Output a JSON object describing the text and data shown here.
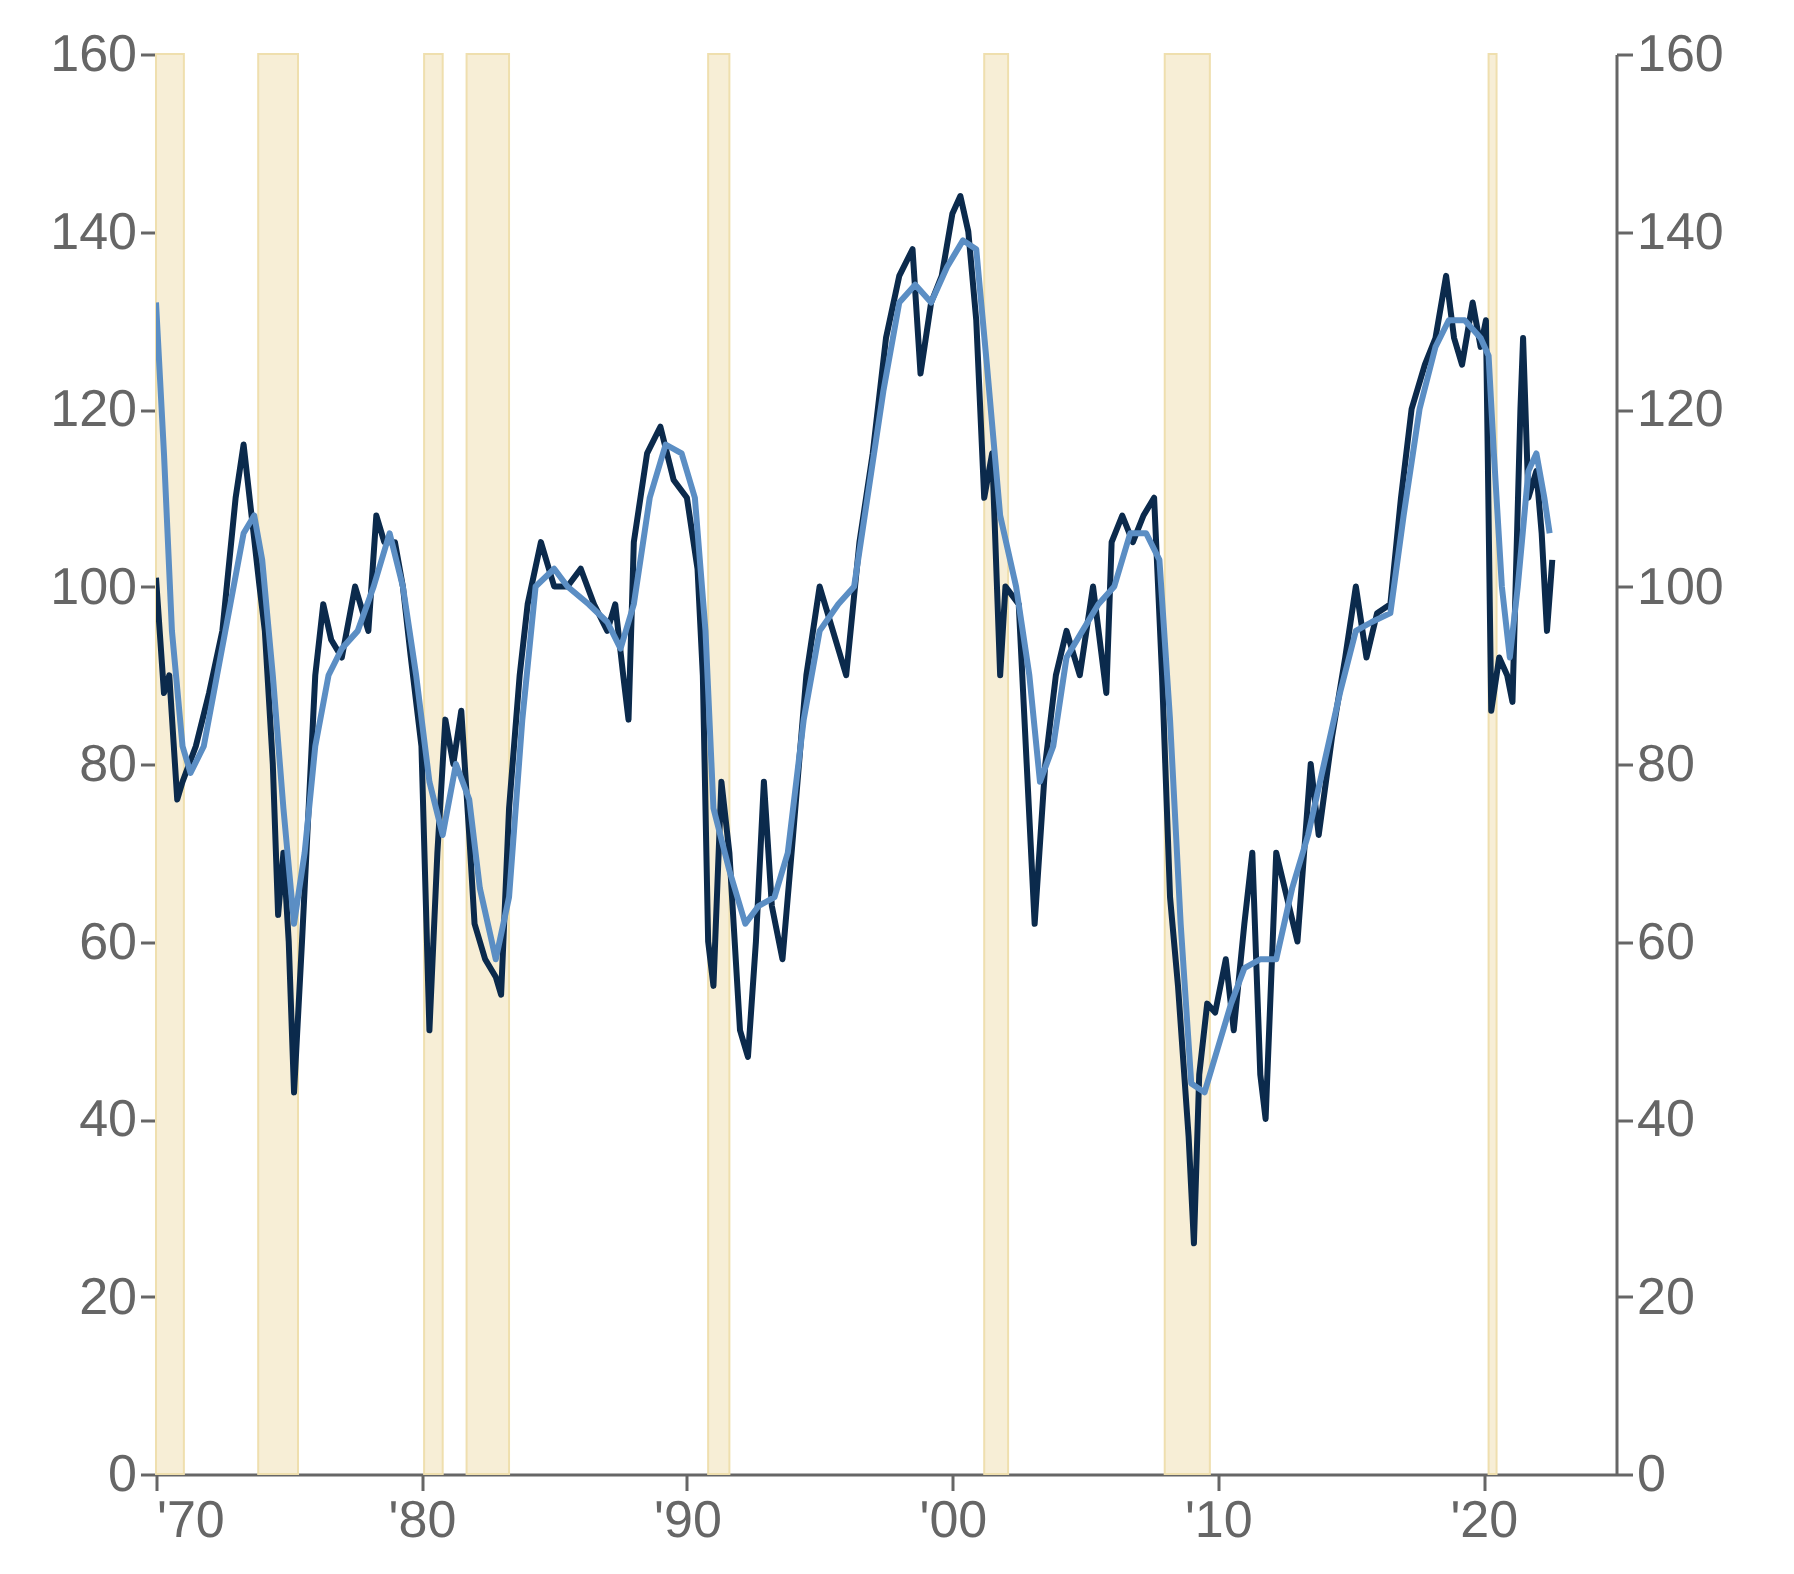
{
  "chart_data": {
    "type": "line",
    "xlim": [
      1970,
      2025
    ],
    "xticks": [
      {
        "value": 1970,
        "label": "'70"
      },
      {
        "value": 1980,
        "label": "'80"
      },
      {
        "value": 1990,
        "label": "'90"
      },
      {
        "value": 2000,
        "label": "'00"
      },
      {
        "value": 2010,
        "label": "'10"
      },
      {
        "value": 2020,
        "label": "'20"
      }
    ],
    "ylim": [
      0,
      160
    ],
    "yticks": [
      0,
      20,
      40,
      60,
      80,
      100,
      120,
      140,
      160
    ],
    "y2lim": [
      0,
      160
    ],
    "y2ticks": [
      0,
      20,
      40,
      60,
      80,
      100,
      120,
      140,
      160
    ],
    "grid": false,
    "marker": "none",
    "line_style": "solid",
    "bands": [
      {
        "axis": "x",
        "from": 1970,
        "to": 1971.05,
        "color": "#f7eed6"
      },
      {
        "axis": "x",
        "from": 1973.85,
        "to": 1975.35,
        "color": "#f7eed6"
      },
      {
        "axis": "x",
        "from": 1980.1,
        "to": 1980.8,
        "color": "#f7eed6"
      },
      {
        "axis": "x",
        "from": 1981.7,
        "to": 1983.3,
        "color": "#f7eed6"
      },
      {
        "axis": "x",
        "from": 1990.8,
        "to": 1991.6,
        "color": "#f7eed6"
      },
      {
        "axis": "x",
        "from": 2001.2,
        "to": 2002.1,
        "color": "#f7eed6"
      },
      {
        "axis": "x",
        "from": 2008.0,
        "to": 2009.7,
        "color": "#f7eed6"
      },
      {
        "axis": "x",
        "from": 2020.2,
        "to": 2020.5,
        "color": "#f7eed6"
      }
    ],
    "series": [
      {
        "color": "#0b2a4c",
        "x": [
          1970.0,
          1970.3,
          1970.5,
          1970.8,
          1971.0,
          1971.5,
          1972.0,
          1972.5,
          1973.0,
          1973.3,
          1973.6,
          1973.9,
          1974.1,
          1974.4,
          1974.6,
          1974.8,
          1975.0,
          1975.2,
          1975.5,
          1975.8,
          1976.0,
          1976.3,
          1976.6,
          1977.0,
          1977.5,
          1978.0,
          1978.3,
          1978.6,
          1979.0,
          1979.3,
          1979.6,
          1980.0,
          1980.3,
          1980.6,
          1980.9,
          1981.2,
          1981.5,
          1981.8,
          1982.0,
          1982.4,
          1982.8,
          1983.0,
          1983.3,
          1983.7,
          1984.0,
          1984.5,
          1985.0,
          1985.5,
          1986.0,
          1986.5,
          1987.0,
          1987.3,
          1987.6,
          1987.8,
          1988.0,
          1988.5,
          1989.0,
          1989.5,
          1990.0,
          1990.4,
          1990.6,
          1990.8,
          1991.0,
          1991.3,
          1991.6,
          1992.0,
          1992.3,
          1992.6,
          1992.9,
          1993.2,
          1993.6,
          1994.0,
          1994.5,
          1995.0,
          1995.5,
          1996.0,
          1996.5,
          1997.0,
          1997.5,
          1998.0,
          1998.5,
          1998.8,
          1999.2,
          1999.6,
          2000.0,
          2000.3,
          2000.6,
          2000.9,
          2001.2,
          2001.5,
          2001.8,
          2002.0,
          2002.5,
          2002.8,
          2003.1,
          2003.5,
          2003.9,
          2004.3,
          2004.8,
          2005.3,
          2005.8,
          2006.0,
          2006.4,
          2006.8,
          2007.2,
          2007.6,
          2007.9,
          2008.2,
          2008.5,
          2008.9,
          2009.1,
          2009.3,
          2009.6,
          2009.9,
          2010.3,
          2010.6,
          2011.0,
          2011.3,
          2011.6,
          2011.8,
          2012.2,
          2012.6,
          2013.0,
          2013.5,
          2013.8,
          2014.3,
          2014.8,
          2015.2,
          2015.6,
          2016.0,
          2016.5,
          2016.9,
          2017.3,
          2017.8,
          2018.2,
          2018.6,
          2018.9,
          2019.2,
          2019.6,
          2019.9,
          2020.1,
          2020.3,
          2020.6,
          2020.9,
          2021.1,
          2021.4,
          2021.5,
          2021.7,
          2022.0,
          2022.2,
          2022.4,
          2022.6
        ],
        "values": [
          101,
          88,
          90,
          76,
          78,
          82,
          88,
          95,
          110,
          116,
          108,
          100,
          95,
          80,
          63,
          70,
          60,
          43,
          60,
          78,
          90,
          98,
          94,
          92,
          100,
          95,
          108,
          105,
          105,
          100,
          92,
          82,
          50,
          70,
          85,
          80,
          86,
          72,
          62,
          58,
          56,
          54,
          75,
          90,
          98,
          105,
          100,
          100,
          102,
          98,
          95,
          98,
          90,
          85,
          105,
          115,
          118,
          112,
          110,
          102,
          90,
          60,
          55,
          78,
          70,
          50,
          47,
          60,
          78,
          64,
          58,
          72,
          90,
          100,
          95,
          90,
          105,
          115,
          128,
          135,
          138,
          124,
          132,
          135,
          142,
          144,
          140,
          130,
          110,
          115,
          90,
          100,
          98,
          80,
          62,
          80,
          90,
          95,
          90,
          100,
          88,
          105,
          108,
          105,
          108,
          110,
          90,
          65,
          55,
          38,
          26,
          45,
          53,
          52,
          58,
          50,
          62,
          70,
          45,
          40,
          70,
          65,
          60,
          80,
          72,
          83,
          92,
          100,
          92,
          97,
          98,
          110,
          120,
          125,
          128,
          135,
          128,
          125,
          132,
          127,
          130,
          86,
          92,
          90,
          87,
          120,
          128,
          110,
          113,
          106,
          95,
          103
        ]
      },
      {
        "color": "#5b8ec4",
        "x": [
          1970.0,
          1970.3,
          1970.6,
          1971.0,
          1971.3,
          1971.8,
          1972.3,
          1972.8,
          1973.3,
          1973.7,
          1974.0,
          1974.4,
          1974.8,
          1975.2,
          1975.6,
          1976.0,
          1976.5,
          1977.0,
          1977.6,
          1978.2,
          1978.8,
          1979.3,
          1979.8,
          1980.3,
          1980.8,
          1981.3,
          1981.8,
          1982.2,
          1982.8,
          1983.3,
          1983.8,
          1984.3,
          1985.0,
          1985.5,
          1986.3,
          1987.0,
          1987.5,
          1988.0,
          1988.6,
          1989.2,
          1989.8,
          1990.3,
          1990.7,
          1991.0,
          1991.6,
          1992.2,
          1992.7,
          1993.3,
          1993.8,
          1994.4,
          1995.0,
          1995.7,
          1996.3,
          1996.8,
          1997.4,
          1998.0,
          1998.6,
          1999.2,
          1999.8,
          2000.4,
          2000.9,
          2001.3,
          2001.8,
          2002.4,
          2002.9,
          2003.3,
          2003.8,
          2004.3,
          2004.9,
          2005.5,
          2006.1,
          2006.7,
          2007.3,
          2007.8,
          2008.2,
          2008.6,
          2009.0,
          2009.5,
          2010.0,
          2010.5,
          2011.0,
          2011.6,
          2012.2,
          2012.8,
          2013.4,
          2014.0,
          2014.6,
          2015.2,
          2015.8,
          2016.5,
          2017.0,
          2017.6,
          2018.2,
          2018.7,
          2019.3,
          2019.9,
          2020.2,
          2020.4,
          2020.7,
          2021.0,
          2021.3,
          2021.7,
          2022.0,
          2022.3,
          2022.5
        ],
        "values": [
          132,
          115,
          95,
          82,
          79,
          82,
          90,
          98,
          106,
          108,
          103,
          90,
          75,
          62,
          70,
          82,
          90,
          93,
          95,
          100,
          106,
          100,
          90,
          78,
          72,
          80,
          76,
          66,
          58,
          65,
          85,
          100,
          102,
          100,
          98,
          96,
          93,
          98,
          110,
          116,
          115,
          110,
          95,
          75,
          68,
          62,
          64,
          65,
          70,
          85,
          95,
          98,
          100,
          110,
          122,
          132,
          134,
          132,
          136,
          139,
          138,
          125,
          108,
          100,
          90,
          78,
          82,
          92,
          95,
          98,
          100,
          106,
          106,
          103,
          85,
          62,
          44,
          43,
          48,
          53,
          57,
          58,
          58,
          66,
          72,
          80,
          88,
          95,
          96,
          97,
          108,
          120,
          127,
          130,
          130,
          128,
          126,
          115,
          100,
          92,
          100,
          113,
          115,
          110,
          106
        ]
      }
    ]
  }
}
